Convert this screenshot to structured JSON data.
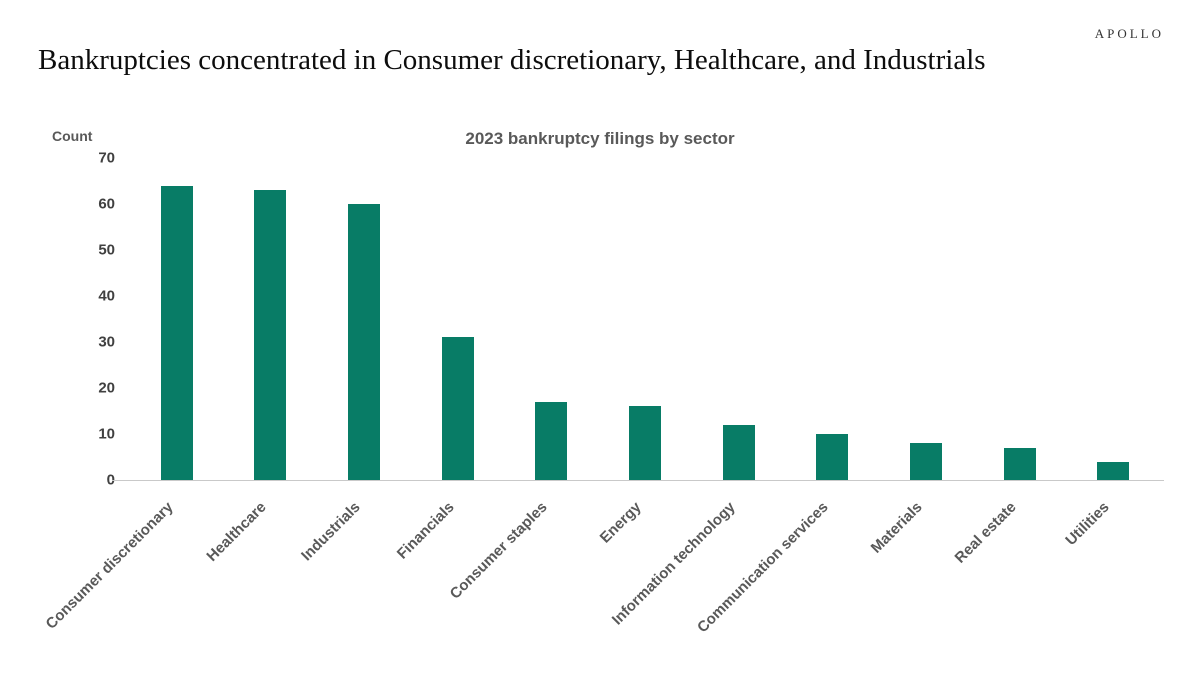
{
  "header": {
    "logo": "APOLLO",
    "title": "Bankruptcies concentrated in Consumer discretionary, Healthcare, and Industrials"
  },
  "chart_data": {
    "type": "bar",
    "title": "2023 bankruptcy filings by sector",
    "ylabel": "Count",
    "xlabel": "",
    "categories": [
      "Consumer discretionary",
      "Healthcare",
      "Industrials",
      "Financials",
      "Consumer staples",
      "Energy",
      "Information technology",
      "Communication services",
      "Materials",
      "Real estate",
      "Utilities"
    ],
    "values": [
      64,
      63,
      60,
      31,
      17,
      16,
      12,
      10,
      8,
      7,
      4
    ],
    "ylim": [
      0,
      70
    ],
    "yticks": [
      0,
      10,
      20,
      30,
      40,
      50,
      60,
      70
    ],
    "bar_color": "#087c66",
    "grid": false,
    "legend": "none"
  }
}
